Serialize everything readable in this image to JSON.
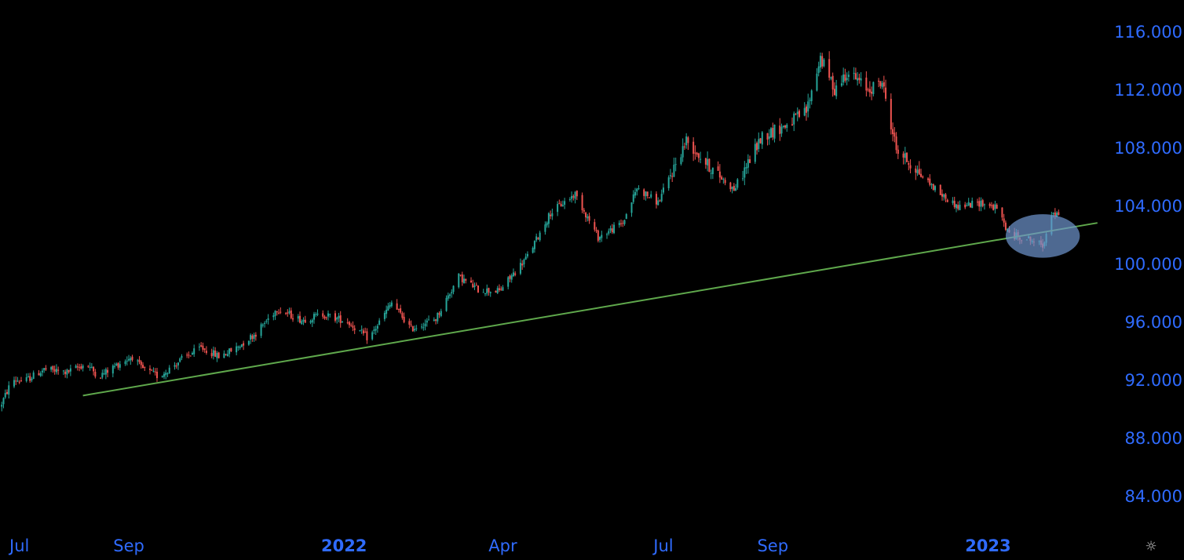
{
  "chart_data": {
    "type": "candlestick",
    "title": "",
    "xlabel": "",
    "ylabel": "",
    "ylim": [
      82,
      117
    ],
    "xlim": [
      "2021-06-20",
      "2023-03-05"
    ],
    "grid": false,
    "colors": {
      "background": "#000000",
      "up": "#26a69a",
      "down": "#ef5350",
      "axis_text": "#2f6bff",
      "trendline": "#5fa84c",
      "highlight": "#6f95cf"
    },
    "y_ticks": [
      "84.000",
      "88.000",
      "92.000",
      "96.000",
      "100.000",
      "104.000",
      "108.000",
      "112.000",
      "116.000"
    ],
    "x_ticks": [
      {
        "label": "Jul",
        "date": "2021-07-01",
        "bold": false
      },
      {
        "label": "Sep",
        "date": "2021-09-01",
        "bold": false
      },
      {
        "label": "2022",
        "date": "2022-01-01",
        "bold": true
      },
      {
        "label": "Apr",
        "date": "2022-04-01",
        "bold": false
      },
      {
        "label": "Jul",
        "date": "2022-07-01",
        "bold": false
      },
      {
        "label": "Sep",
        "date": "2022-09-01",
        "bold": false
      },
      {
        "label": "2023",
        "date": "2023-01-01",
        "bold": true
      }
    ],
    "price_path": [
      [
        "2021-06-20",
        90.1
      ],
      [
        "2021-06-27",
        92.0
      ],
      [
        "2021-07-04",
        91.9
      ],
      [
        "2021-07-15",
        92.7
      ],
      [
        "2021-07-28",
        92.5
      ],
      [
        "2021-08-08",
        93.1
      ],
      [
        "2021-08-15",
        92.2
      ],
      [
        "2021-08-25",
        93.0
      ],
      [
        "2021-09-03",
        93.6
      ],
      [
        "2021-09-08",
        92.8
      ],
      [
        "2021-09-18",
        92.2
      ],
      [
        "2021-10-01",
        93.4
      ],
      [
        "2021-10-12",
        94.2
      ],
      [
        "2021-10-22",
        93.6
      ],
      [
        "2021-10-31",
        94.1
      ],
      [
        "2021-11-12",
        95.2
      ],
      [
        "2021-11-24",
        96.9
      ],
      [
        "2021-12-08",
        96.1
      ],
      [
        "2021-12-20",
        96.5
      ],
      [
        "2022-01-03",
        96.0
      ],
      [
        "2022-01-15",
        94.8
      ],
      [
        "2022-01-28",
        97.3
      ],
      [
        "2022-02-08",
        95.5
      ],
      [
        "2022-02-22",
        96.2
      ],
      [
        "2022-03-07",
        99.1
      ],
      [
        "2022-03-18",
        98.2
      ],
      [
        "2022-03-30",
        98.1
      ],
      [
        "2022-04-15",
        100.5
      ],
      [
        "2022-04-28",
        103.5
      ],
      [
        "2022-05-12",
        104.8
      ],
      [
        "2022-05-25",
        101.8
      ],
      [
        "2022-06-08",
        102.8
      ],
      [
        "2022-06-16",
        105.2
      ],
      [
        "2022-06-28",
        104.2
      ],
      [
        "2022-07-14",
        108.5
      ],
      [
        "2022-07-26",
        106.8
      ],
      [
        "2022-08-10",
        105.1
      ],
      [
        "2022-08-26",
        108.8
      ],
      [
        "2022-09-08",
        109.5
      ],
      [
        "2022-09-20",
        110.5
      ],
      [
        "2022-09-28",
        114.2
      ],
      [
        "2022-10-06",
        112.0
      ],
      [
        "2022-10-13",
        113.2
      ],
      [
        "2022-10-25",
        112.0
      ],
      [
        "2022-11-02",
        112.5
      ],
      [
        "2022-11-10",
        107.9
      ],
      [
        "2022-11-24",
        106.1
      ],
      [
        "2022-12-05",
        104.8
      ],
      [
        "2022-12-15",
        103.9
      ],
      [
        "2022-12-28",
        104.2
      ],
      [
        "2023-01-06",
        103.8
      ],
      [
        "2023-01-13",
        102.0
      ],
      [
        "2023-01-24",
        101.7
      ],
      [
        "2023-02-01",
        101.2
      ],
      [
        "2023-02-06",
        103.5
      ],
      [
        "2023-02-10",
        103.2
      ]
    ],
    "annotations": {
      "trendline": {
        "from": [
          "2021-08-06",
          90.9
        ],
        "to": [
          "2023-03-04",
          102.8
        ]
      },
      "highlight_ellipse": {
        "center": [
          "2023-02-01",
          101.9
        ],
        "radius_days": 21,
        "radius_price": 1.5
      }
    }
  },
  "settings_icon": "gear-icon"
}
